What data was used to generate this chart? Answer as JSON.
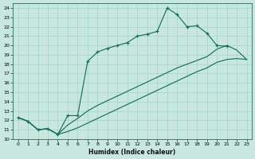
{
  "xlabel": "Humidex (Indice chaleur)",
  "bg_color": "#c8e8df",
  "line_color": "#1a6e5e",
  "grid_color": "#9ecec2",
  "xlim": [
    -0.5,
    23.5
  ],
  "ylim": [
    10,
    24.5
  ],
  "xticks": [
    0,
    1,
    2,
    3,
    4,
    5,
    6,
    7,
    8,
    9,
    10,
    11,
    12,
    13,
    14,
    15,
    16,
    17,
    18,
    19,
    20,
    21,
    22,
    23
  ],
  "yticks": [
    10,
    11,
    12,
    13,
    14,
    15,
    16,
    17,
    18,
    19,
    20,
    21,
    22,
    23,
    24
  ],
  "line1_x": [
    0,
    1,
    2,
    3,
    4,
    5,
    6,
    7,
    8,
    9,
    10,
    11,
    12,
    13,
    14,
    15,
    16,
    17,
    18,
    19,
    20,
    21
  ],
  "line1_y": [
    12.3,
    11.9,
    11.0,
    11.1,
    10.5,
    12.5,
    12.5,
    18.3,
    19.3,
    19.7,
    20.0,
    20.3,
    21.0,
    21.2,
    21.5,
    24.0,
    23.3,
    22.0,
    22.1,
    21.3,
    20.0,
    19.9
  ],
  "line2_x": [
    0,
    1,
    2,
    3,
    4,
    5,
    6,
    7,
    8,
    9,
    10,
    11,
    12,
    13,
    14,
    15,
    16,
    17,
    18,
    19,
    20,
    21,
    22,
    23
  ],
  "line2_y": [
    12.3,
    11.9,
    11.0,
    11.1,
    10.5,
    11.5,
    12.2,
    13.0,
    13.6,
    14.1,
    14.6,
    15.1,
    15.6,
    16.1,
    16.6,
    17.1,
    17.6,
    18.0,
    18.4,
    18.8,
    19.6,
    20.0,
    19.5,
    18.5
  ],
  "line3_x": [
    0,
    1,
    2,
    3,
    4,
    5,
    6,
    7,
    8,
    9,
    10,
    11,
    12,
    13,
    14,
    15,
    16,
    17,
    18,
    19,
    20,
    21,
    22,
    23
  ],
  "line3_y": [
    12.3,
    11.9,
    11.0,
    11.1,
    10.5,
    10.8,
    11.2,
    11.7,
    12.2,
    12.7,
    13.2,
    13.7,
    14.2,
    14.7,
    15.2,
    15.7,
    16.2,
    16.7,
    17.2,
    17.6,
    18.2,
    18.5,
    18.6,
    18.5
  ]
}
